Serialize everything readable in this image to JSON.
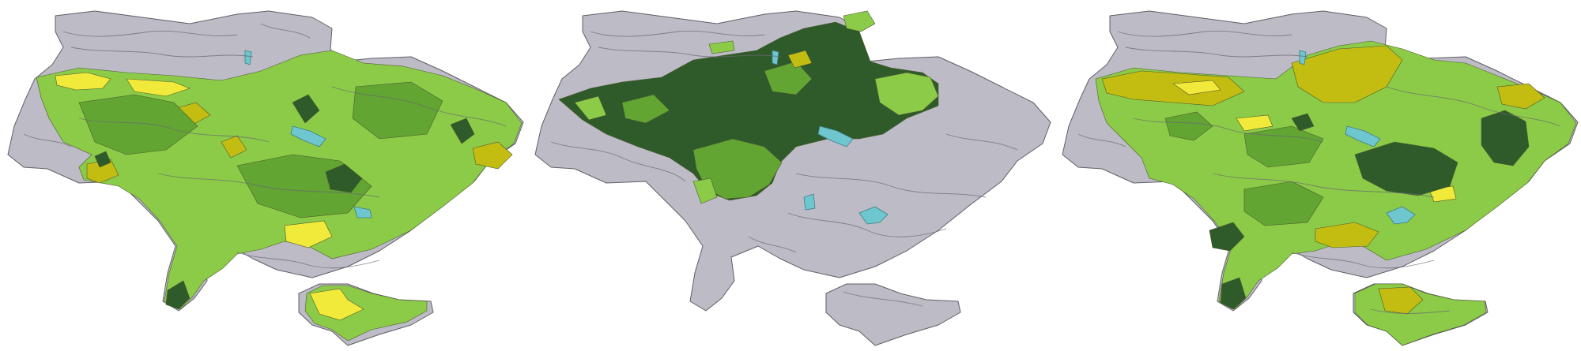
{
  "palette": {
    "base_gray": "#bdbcc6",
    "outline_gray": "#5f5f66",
    "water": "#6ec6cf",
    "yellow": "#f2ea3a",
    "olive": "#c3bd12",
    "light_green": "#8ccb47",
    "mid_green": "#62a532",
    "dark_green": "#2f5a2a"
  },
  "maps": [
    {
      "id": "map-1",
      "dominant_fill": "light_green",
      "patches": [
        "yellow",
        "olive",
        "mid_green",
        "dark_green"
      ],
      "unshaded_regions": [
        "north-west",
        "south-east",
        "crimea-east"
      ],
      "shaded_regions": [
        "west",
        "centre",
        "east",
        "south-west",
        "crimea-west"
      ]
    },
    {
      "id": "map-2",
      "dominant_fill": "dark_green",
      "patches": [
        "mid_green",
        "light_green",
        "olive"
      ],
      "unshaded_regions": [
        "west",
        "south",
        "east",
        "crimea"
      ],
      "shaded_regions": [
        "north-centre",
        "centre-west"
      ]
    },
    {
      "id": "map-3",
      "dominant_fill": "light_green",
      "patches": [
        "olive",
        "yellow",
        "mid_green",
        "dark_green"
      ],
      "unshaded_regions": [
        "north-west",
        "far-west"
      ],
      "shaded_regions": [
        "centre",
        "east",
        "south",
        "crimea"
      ]
    }
  ]
}
